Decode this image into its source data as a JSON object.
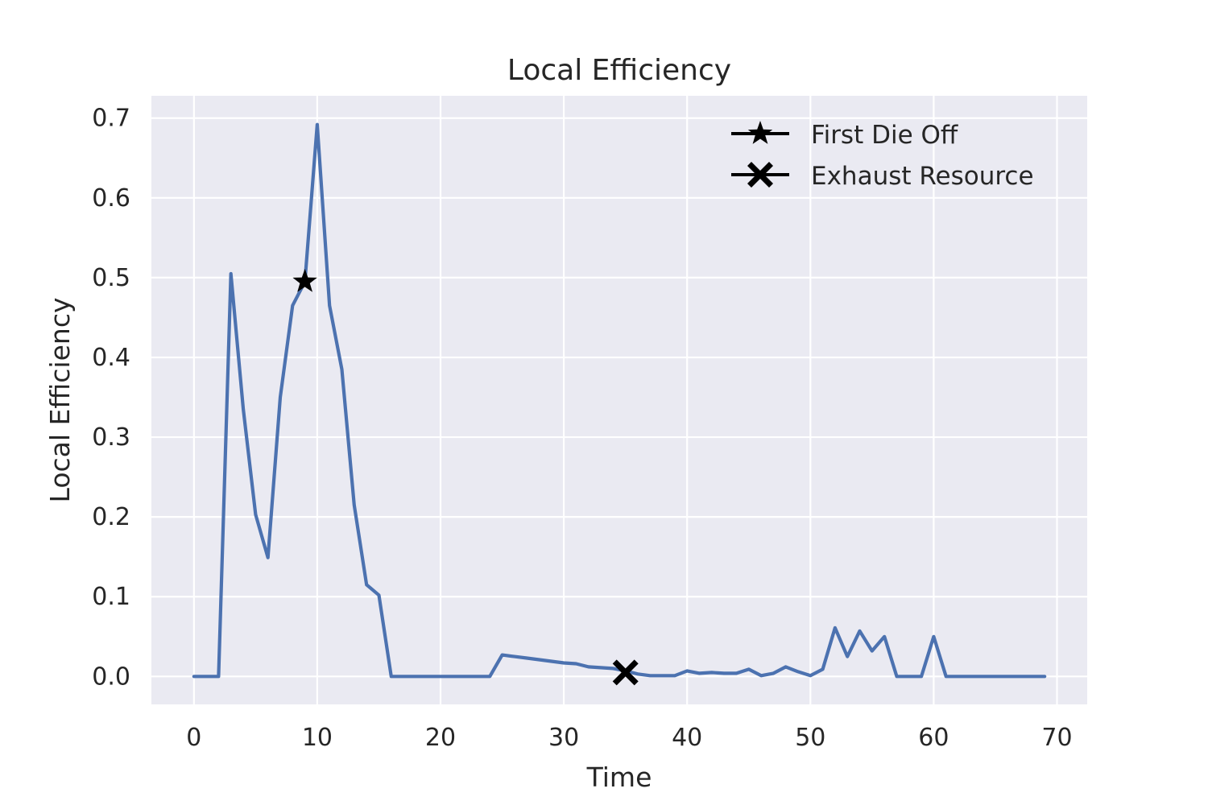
{
  "chart_data": {
    "type": "line",
    "title": "Local Efficiency",
    "xlabel": "Time",
    "ylabel": "Local Efficiency",
    "xlim": [
      -3.45,
      72.45
    ],
    "ylim": [
      -0.035,
      0.728
    ],
    "xticks": [
      0,
      10,
      20,
      30,
      40,
      50,
      60,
      70
    ],
    "yticks": [
      0.0,
      0.1,
      0.2,
      0.3,
      0.4,
      0.5,
      0.6,
      0.7
    ],
    "xtick_labels": [
      "0",
      "10",
      "20",
      "30",
      "40",
      "50",
      "60",
      "70"
    ],
    "ytick_labels": [
      "0.0",
      "0.1",
      "0.2",
      "0.3",
      "0.4",
      "0.5",
      "0.6",
      "0.7"
    ],
    "grid": true,
    "legend_position": "top-right",
    "colors": {
      "line": "#4c72b0",
      "background": "#eaeaf2",
      "grid": "#ffffff",
      "markers": "#000000"
    },
    "series": [
      {
        "x": [
          0,
          1,
          2,
          3,
          4,
          5,
          6,
          7,
          8,
          9,
          10,
          11,
          12,
          13,
          14,
          15,
          16,
          17,
          18,
          19,
          20,
          21,
          22,
          23,
          24,
          25,
          26,
          27,
          28,
          29,
          30,
          31,
          32,
          33,
          34,
          35,
          36,
          37,
          38,
          39,
          40,
          41,
          42,
          43,
          44,
          45,
          46,
          47,
          48,
          49,
          50,
          51,
          52,
          53,
          54,
          55,
          56,
          57,
          58,
          59,
          60,
          61,
          62,
          63,
          64,
          65,
          66,
          67,
          68,
          69
        ],
        "values": [
          0.0,
          0.0,
          0.0,
          0.505,
          0.335,
          0.203,
          0.149,
          0.35,
          0.465,
          0.495,
          0.692,
          0.465,
          0.385,
          0.215,
          0.115,
          0.102,
          0.0,
          0.0,
          0.0,
          0.0,
          0.0,
          0.0,
          0.0,
          0.0,
          0.0,
          0.027,
          0.025,
          0.023,
          0.021,
          0.019,
          0.017,
          0.016,
          0.012,
          0.011,
          0.01,
          0.007,
          0.003,
          0.001,
          0.001,
          0.001,
          0.007,
          0.004,
          0.005,
          0.004,
          0.004,
          0.009,
          0.001,
          0.004,
          0.012,
          0.006,
          0.001,
          0.009,
          0.061,
          0.025,
          0.057,
          0.032,
          0.05,
          0.0,
          0.0,
          0.0,
          0.05,
          0.0,
          0.0,
          0.0,
          0.0,
          0.0,
          0.0,
          0.0,
          0.0,
          0.0
        ]
      }
    ],
    "markers": [
      {
        "name": "First Die Off",
        "symbol": "star",
        "x": 9,
        "y": 0.495
      },
      {
        "name": "Exhaust Resource",
        "symbol": "x",
        "x": 35,
        "y": 0.005
      }
    ]
  }
}
